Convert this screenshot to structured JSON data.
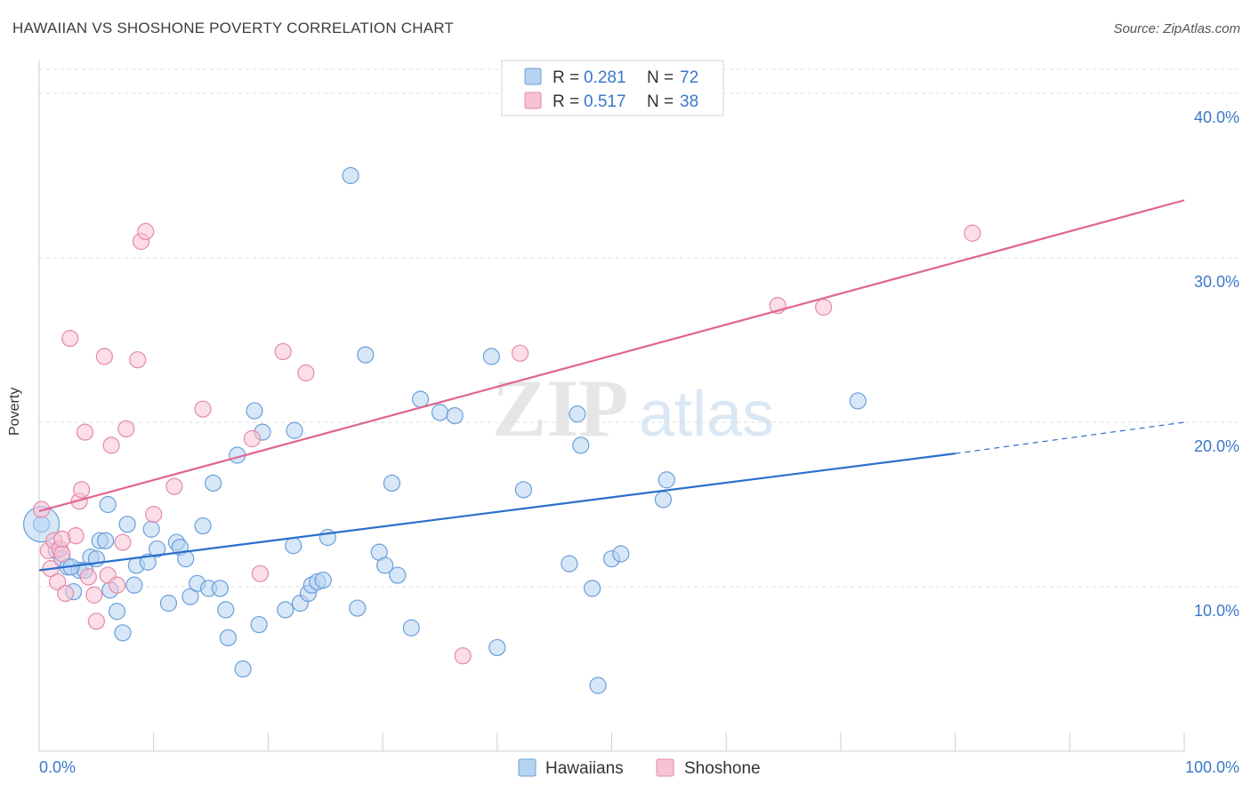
{
  "header": {
    "title": "HAWAIIAN VS SHOSHONE POVERTY CORRELATION CHART",
    "source": "Source: ZipAtlas.com"
  },
  "colors": {
    "hawaiians_fill": "#b7d3f2",
    "hawaiians_stroke": "#6a9fd8",
    "hawaiians_line": "#2a6fcc",
    "shoshone_fill": "#f7c3d3",
    "shoshone_stroke": "#e48aa8",
    "shoshone_line": "#e0668f",
    "accent_text": "#3a78c9"
  },
  "legend": {
    "rows": [
      {
        "r_label": "R =",
        "r_value": "0.281",
        "n_label": "N =",
        "n_value": "72"
      },
      {
        "r_label": "R =",
        "r_value": "0.517",
        "n_label": "N =",
        "n_value": "38"
      }
    ]
  },
  "bottom_legend": [
    "Hawaiians",
    "Shoshone"
  ],
  "watermark": {
    "zip": "ZIP",
    "atlas": "atlas"
  },
  "chart_data": {
    "type": "scatter",
    "title": "HAWAIIAN VS SHOSHONE POVERTY CORRELATION CHART",
    "xlabel": "",
    "ylabel": "Poverty",
    "xlim": [
      0,
      100
    ],
    "ylim": [
      0,
      42
    ],
    "x_tick_labels": [
      "0.0%",
      "100.0%"
    ],
    "y_ticks": [
      10,
      20,
      30,
      40
    ],
    "y_tick_labels": [
      "10.0%",
      "20.0%",
      "30.0%",
      "40.0%"
    ],
    "grid": true,
    "legend_position": "top-center",
    "series": [
      {
        "name": "Hawaiians",
        "r": 0.281,
        "n": 72,
        "trend": {
          "x0": 0,
          "y0": 11.0,
          "x1": 80,
          "y1": 18.1,
          "dashed_to_x": 100,
          "dashed_to_y": 20.0
        },
        "points": [
          [
            0.2,
            13.8
          ],
          [
            1.5,
            12.2
          ],
          [
            2.0,
            11.7
          ],
          [
            2.5,
            11.2
          ],
          [
            3.0,
            9.7
          ],
          [
            3.5,
            11.0
          ],
          [
            4.0,
            11.0
          ],
          [
            4.5,
            11.8
          ],
          [
            5.0,
            11.7
          ],
          [
            5.3,
            12.8
          ],
          [
            6.0,
            15.0
          ],
          [
            6.2,
            9.8
          ],
          [
            6.8,
            8.5
          ],
          [
            7.3,
            7.2
          ],
          [
            7.7,
            13.8
          ],
          [
            8.3,
            10.1
          ],
          [
            8.5,
            11.3
          ],
          [
            9.5,
            11.5
          ],
          [
            9.8,
            13.5
          ],
          [
            10.3,
            12.3
          ],
          [
            11.3,
            9.0
          ],
          [
            12.0,
            12.7
          ],
          [
            12.3,
            12.4
          ],
          [
            12.8,
            11.7
          ],
          [
            13.2,
            9.4
          ],
          [
            13.8,
            10.2
          ],
          [
            14.3,
            13.7
          ],
          [
            14.8,
            9.9
          ],
          [
            15.2,
            16.3
          ],
          [
            15.8,
            9.9
          ],
          [
            16.3,
            8.6
          ],
          [
            16.5,
            6.9
          ],
          [
            17.3,
            18.0
          ],
          [
            17.8,
            5.0
          ],
          [
            18.8,
            20.7
          ],
          [
            19.2,
            7.7
          ],
          [
            19.5,
            19.4
          ],
          [
            21.5,
            8.6
          ],
          [
            22.2,
            12.5
          ],
          [
            22.3,
            19.5
          ],
          [
            22.8,
            9.0
          ],
          [
            23.5,
            9.6
          ],
          [
            23.8,
            10.1
          ],
          [
            24.3,
            10.3
          ],
          [
            24.8,
            10.4
          ],
          [
            25.2,
            13.0
          ],
          [
            27.2,
            35.0
          ],
          [
            27.8,
            8.7
          ],
          [
            28.5,
            24.1
          ],
          [
            29.7,
            12.1
          ],
          [
            30.2,
            11.3
          ],
          [
            30.8,
            16.3
          ],
          [
            31.3,
            10.7
          ],
          [
            32.5,
            7.5
          ],
          [
            33.3,
            21.4
          ],
          [
            35.0,
            20.6
          ],
          [
            36.3,
            20.4
          ],
          [
            39.5,
            24.0
          ],
          [
            40.0,
            6.3
          ],
          [
            42.3,
            15.9
          ],
          [
            47.0,
            20.5
          ],
          [
            47.3,
            18.6
          ],
          [
            46.3,
            11.4
          ],
          [
            48.3,
            9.9
          ],
          [
            48.8,
            4.0
          ],
          [
            50.0,
            11.7
          ],
          [
            50.8,
            12.0
          ],
          [
            54.5,
            15.3
          ],
          [
            54.8,
            16.5
          ],
          [
            71.5,
            21.3
          ],
          [
            2.8,
            11.2
          ],
          [
            5.8,
            12.8
          ]
        ]
      },
      {
        "name": "Shoshone",
        "r": 0.517,
        "n": 38,
        "trend": {
          "x0": 0,
          "y0": 14.6,
          "x1": 100,
          "y1": 33.5
        },
        "points": [
          [
            0.2,
            14.7
          ],
          [
            0.8,
            12.2
          ],
          [
            1.0,
            11.1
          ],
          [
            1.3,
            12.8
          ],
          [
            1.6,
            10.3
          ],
          [
            1.8,
            12.3
          ],
          [
            2.0,
            12.0
          ],
          [
            2.3,
            9.6
          ],
          [
            2.7,
            25.1
          ],
          [
            3.2,
            13.1
          ],
          [
            3.5,
            15.2
          ],
          [
            3.7,
            15.9
          ],
          [
            4.0,
            19.4
          ],
          [
            4.3,
            10.6
          ],
          [
            4.8,
            9.5
          ],
          [
            5.0,
            7.9
          ],
          [
            5.7,
            24.0
          ],
          [
            6.0,
            10.7
          ],
          [
            6.3,
            18.6
          ],
          [
            6.8,
            10.1
          ],
          [
            7.3,
            12.7
          ],
          [
            7.6,
            19.6
          ],
          [
            8.6,
            23.8
          ],
          [
            8.9,
            31.0
          ],
          [
            9.3,
            31.6
          ],
          [
            10.0,
            14.4
          ],
          [
            11.8,
            16.1
          ],
          [
            14.3,
            20.8
          ],
          [
            18.6,
            19.0
          ],
          [
            19.3,
            10.8
          ],
          [
            21.3,
            24.3
          ],
          [
            23.3,
            23.0
          ],
          [
            37.0,
            5.8
          ],
          [
            42.0,
            24.2
          ],
          [
            64.5,
            27.1
          ],
          [
            68.5,
            27.0
          ],
          [
            81.5,
            31.5
          ],
          [
            2.0,
            12.9
          ]
        ]
      }
    ]
  }
}
